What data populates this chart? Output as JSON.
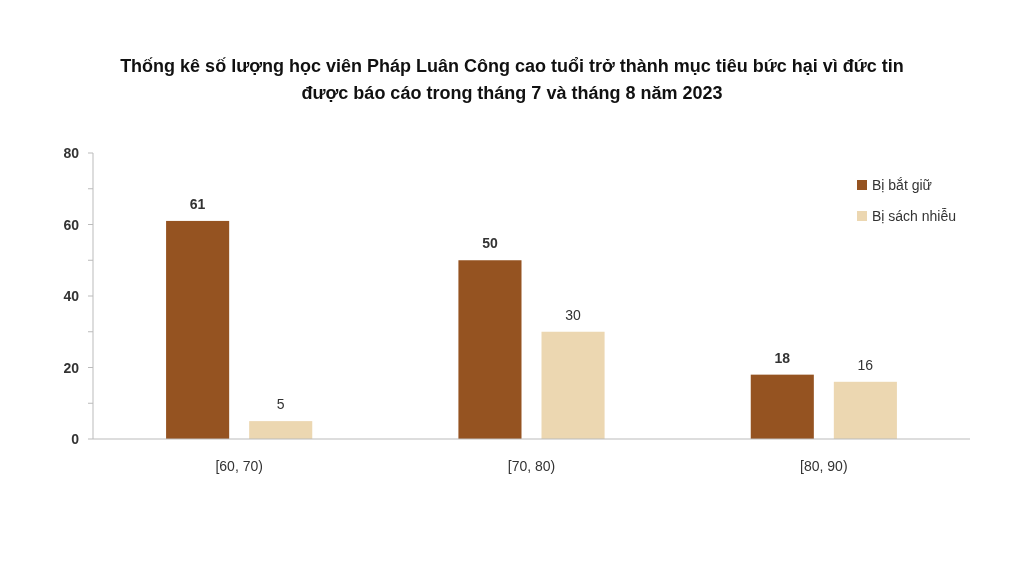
{
  "chart_data": {
    "type": "bar",
    "title": "Thống kê số lượng học viên Pháp Luân Công cao tuổi trở thành mục tiêu bức hại vì đức tin\nđược báo cáo trong tháng 7 và tháng 8 năm 2023",
    "categories": [
      "[60, 70)",
      "[70, 80)",
      "[80, 90)"
    ],
    "series": [
      {
        "name": "Bị bắt giữ",
        "color": "#955321",
        "values": [
          61,
          50,
          18
        ]
      },
      {
        "name": "Bị sách nhiễu",
        "color": "#ecd7b1",
        "values": [
          5,
          30,
          16
        ]
      }
    ],
    "ylim": [
      0,
      80
    ],
    "yticks": [
      0,
      {
        "value": 10,
        "label": null
      },
      20,
      {
        "value": 30,
        "label": null
      },
      40,
      {
        "value": 50,
        "label": null
      },
      60,
      {
        "value": 70,
        "label": null
      },
      80
    ],
    "grid": false,
    "legend": "top right",
    "data_labels": true
  }
}
